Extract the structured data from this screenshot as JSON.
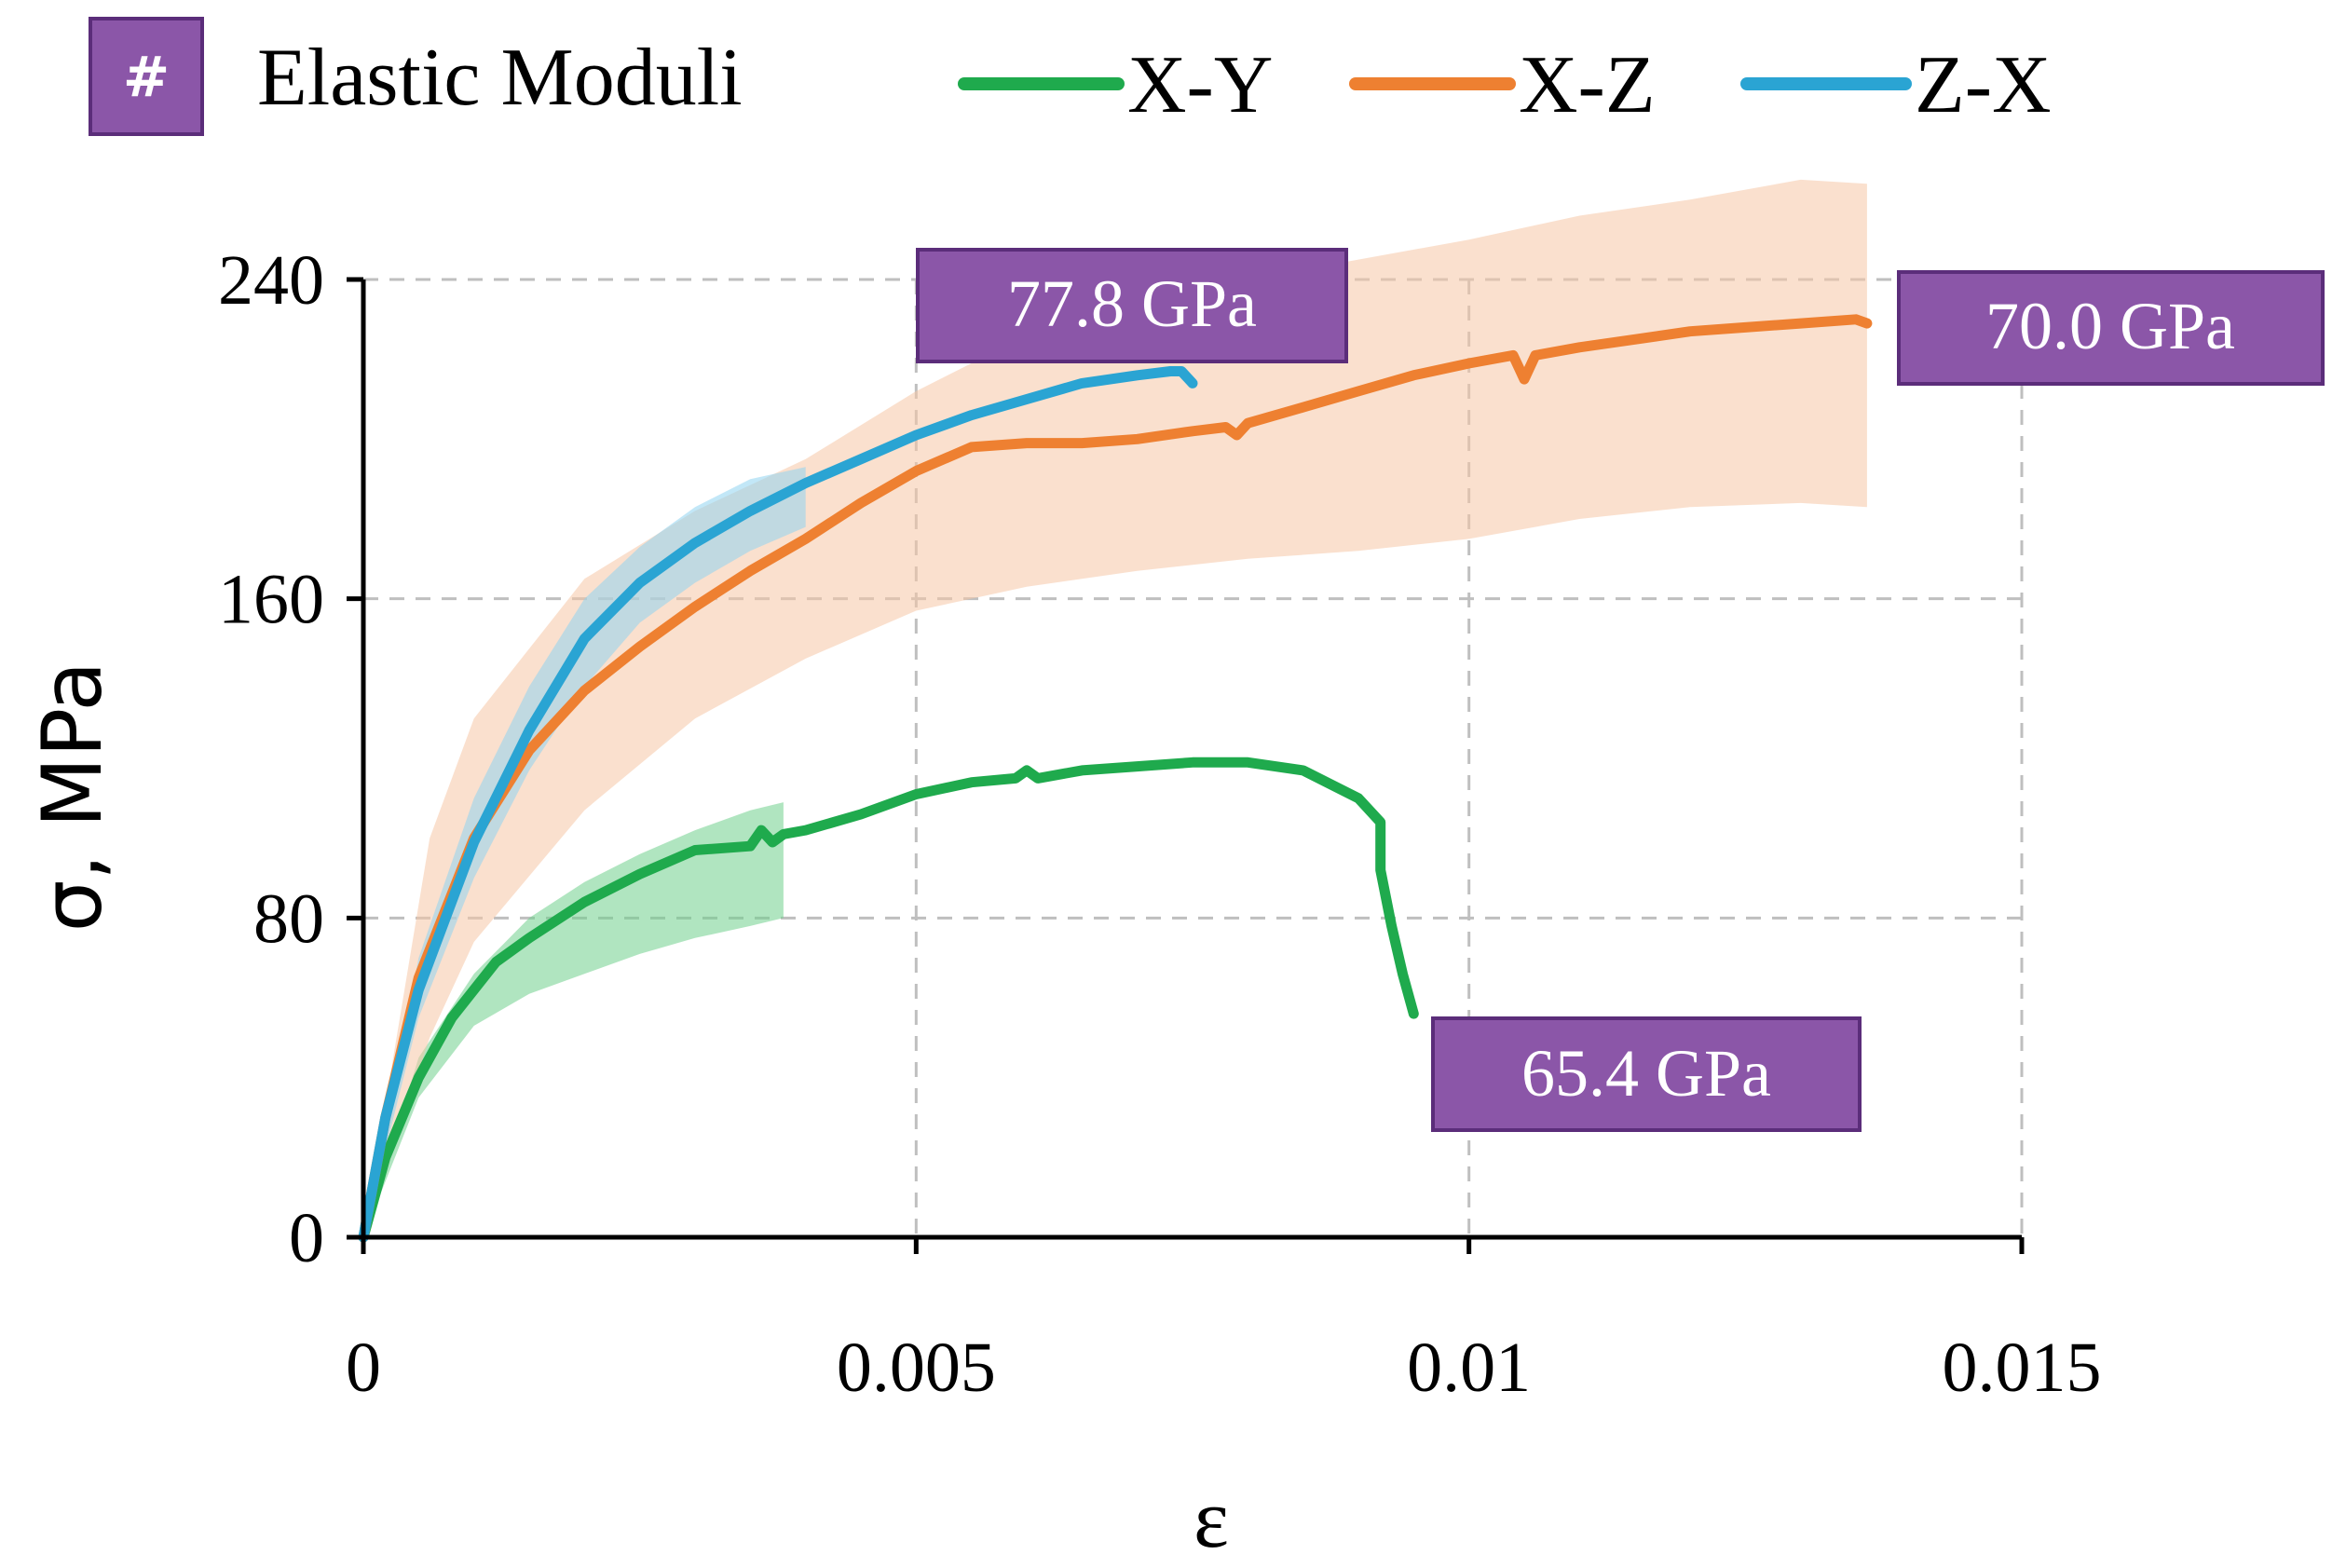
{
  "chart_data": {
    "type": "line",
    "title": "",
    "xlabel": "ε",
    "ylabel": "σ, MPa",
    "xlim": [
      0,
      0.015
    ],
    "ylim": [
      0,
      240
    ],
    "xticks": [
      0,
      0.005,
      0.01,
      0.015
    ],
    "xtick_labels": [
      "0",
      "0.005",
      "0.01",
      "0.015"
    ],
    "yticks": [
      0,
      80,
      160,
      240
    ],
    "ytick_labels": [
      "0",
      "80",
      "160",
      "240"
    ],
    "grid": true,
    "legend": {
      "position": "top",
      "title_badge": "#",
      "title": "Elastic Moduli",
      "entries": [
        "X-Y",
        "X-Z",
        "Z-X"
      ]
    },
    "series": [
      {
        "name": "X-Y",
        "color": "#1faa4d",
        "band_color": "#6fcf8c",
        "x": [
          0,
          0.0002,
          0.0005,
          0.0008,
          0.0012,
          0.0015,
          0.002,
          0.0025,
          0.003,
          0.0035,
          0.0036,
          0.0037,
          0.0038,
          0.004,
          0.0045,
          0.005,
          0.0055,
          0.0059,
          0.006,
          0.0061,
          0.0065,
          0.007,
          0.0075,
          0.008,
          0.0085,
          0.009,
          0.0092,
          0.0092,
          0.0093,
          0.0094,
          0.0095
        ],
        "y": [
          0,
          20,
          40,
          55,
          69,
          75,
          84,
          91,
          97,
          98,
          102,
          99,
          101,
          102,
          106,
          111,
          114,
          115,
          117,
          115,
          117,
          118,
          119,
          119,
          117,
          110,
          104,
          92,
          78,
          66,
          56
        ],
        "band_x": [
          0,
          0.0005,
          0.001,
          0.0015,
          0.002,
          0.0025,
          0.003,
          0.0035,
          0.0038
        ],
        "band_upper": [
          0,
          45,
          66,
          80,
          89,
          96,
          102,
          107,
          109
        ],
        "band_lower": [
          0,
          35,
          53,
          61,
          66,
          71,
          75,
          78,
          80
        ]
      },
      {
        "name": "X-Z",
        "color": "#ee8031",
        "band_color": "#f6c6a6",
        "x": [
          0,
          0.0002,
          0.0005,
          0.001,
          0.0015,
          0.002,
          0.0025,
          0.003,
          0.0035,
          0.004,
          0.0045,
          0.005,
          0.0055,
          0.006,
          0.0065,
          0.007,
          0.0075,
          0.0078,
          0.0079,
          0.008,
          0.0085,
          0.009,
          0.0095,
          0.01,
          0.0104,
          0.0105,
          0.0106,
          0.011,
          0.0115,
          0.012,
          0.0125,
          0.013,
          0.0135,
          0.0136
        ],
        "y": [
          0,
          30,
          65,
          100,
          122,
          137,
          148,
          158,
          167,
          175,
          184,
          192,
          198,
          199,
          199,
          200,
          202,
          203,
          201,
          204,
          208,
          212,
          216,
          219,
          221,
          215,
          221,
          223,
          225,
          227,
          228,
          229,
          230,
          229
        ],
        "band_x": [
          0,
          0.0006,
          0.001,
          0.002,
          0.003,
          0.004,
          0.005,
          0.006,
          0.007,
          0.008,
          0.009,
          0.01,
          0.011,
          0.012,
          0.013,
          0.0136
        ],
        "band_upper": [
          0,
          100,
          130,
          165,
          182,
          195,
          212,
          226,
          236,
          240,
          245,
          250,
          256,
          260,
          265,
          264
        ],
        "band_lower": [
          0,
          50,
          74,
          107,
          130,
          145,
          157,
          163,
          167,
          170,
          172,
          175,
          180,
          183,
          184,
          183
        ]
      },
      {
        "name": "Z-X",
        "color": "#2aa4d3",
        "band_color": "#8fd4f1",
        "x": [
          0,
          0.0002,
          0.0005,
          0.001,
          0.0015,
          0.002,
          0.0025,
          0.003,
          0.0035,
          0.004,
          0.0045,
          0.005,
          0.0055,
          0.006,
          0.0065,
          0.007,
          0.0073,
          0.0074,
          0.0075
        ],
        "y": [
          0,
          30,
          62,
          99,
          127,
          150,
          164,
          174,
          182,
          189,
          195,
          201,
          206,
          210,
          214,
          216,
          217,
          217,
          214
        ],
        "band_x": [
          0,
          0.0005,
          0.001,
          0.0015,
          0.002,
          0.0025,
          0.003,
          0.0035,
          0.004
        ],
        "band_upper": [
          0,
          70,
          110,
          138,
          160,
          173,
          183,
          190,
          193
        ],
        "band_lower": [
          0,
          55,
          90,
          117,
          138,
          154,
          164,
          172,
          178
        ]
      }
    ],
    "annotations": [
      {
        "text": "77.8 GPa",
        "series": "Z-X"
      },
      {
        "text": "70.0 GPa",
        "series": "X-Z"
      },
      {
        "text": "65.4 GPa",
        "series": "X-Y"
      }
    ]
  },
  "colors": {
    "badge_fill": "#8b56a8",
    "badge_border": "#5b2d7a",
    "axis": "#000000",
    "grid": "#bfbfbf"
  }
}
